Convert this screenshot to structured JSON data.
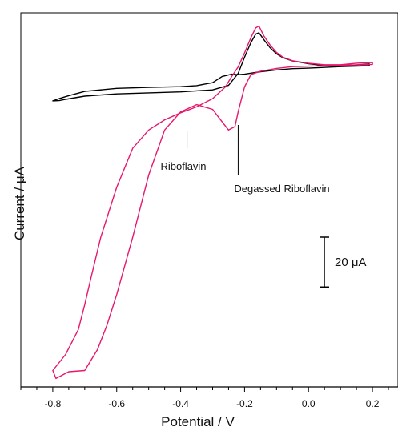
{
  "chart_data": {
    "type": "line",
    "title": "",
    "xlabel": "Potential / V",
    "ylabel": "Current / μA",
    "xlim": [
      -0.9,
      0.28
    ],
    "ylim": [
      -125,
      25
    ],
    "x_ticks": [
      -0.8,
      -0.6,
      -0.4,
      -0.2,
      0.0,
      0.2
    ],
    "x_tick_labels": [
      "-0.8",
      "-0.6",
      "-0.4",
      "-0.2",
      "0.0",
      "0.2"
    ],
    "grid": false,
    "legend": "none",
    "scale_bar": {
      "label": "20 μA",
      "value": 20
    },
    "annotations": [
      {
        "text": "Riboflavin",
        "x": -0.38
      },
      {
        "text": "Degassed Riboflavin",
        "x": -0.22
      }
    ],
    "colors": {
      "pink": "#e8176e",
      "black": "#000000"
    },
    "series": [
      {
        "color": "#000000",
        "x": [
          0.19,
          0.15,
          0.1,
          0.05,
          0.0,
          -0.05,
          -0.08,
          -0.1,
          -0.12,
          -0.14,
          -0.155,
          -0.165,
          -0.18,
          -0.2,
          -0.22,
          -0.25,
          -0.3,
          -0.4,
          -0.5,
          -0.6,
          -0.7,
          -0.76,
          -0.78,
          -0.8,
          -0.78,
          -0.75,
          -0.7,
          -0.6,
          -0.5,
          -0.4,
          -0.35,
          -0.3,
          -0.27,
          -0.24,
          -0.22,
          -0.2,
          -0.18,
          -0.15,
          -0.1,
          -0.05,
          0.0,
          0.1,
          0.19
        ],
        "y": [
          4.5,
          4.1,
          3.7,
          3.9,
          4.6,
          5.7,
          7.0,
          8.6,
          11.0,
          14.3,
          17.0,
          16.5,
          13.1,
          7.2,
          0.7,
          -4.1,
          -5.9,
          -6.7,
          -7.1,
          -7.5,
          -8.4,
          -9.7,
          -10.2,
          -10.3,
          -9.4,
          -8.2,
          -6.5,
          -5.3,
          -4.9,
          -4.6,
          -4.2,
          -3.0,
          -0.5,
          0.4,
          0.2,
          0.4,
          0.8,
          1.4,
          2.1,
          2.6,
          2.8,
          3.4,
          3.8
        ]
      },
      {
        "color": "#e8176e",
        "x": [
          0.2,
          0.15,
          0.1,
          0.05,
          0.0,
          -0.05,
          -0.08,
          -0.1,
          -0.12,
          -0.14,
          -0.155,
          -0.165,
          -0.18,
          -0.2,
          -0.22,
          -0.24,
          -0.26,
          -0.3,
          -0.35,
          -0.4,
          -0.45,
          -0.5,
          -0.55,
          -0.6,
          -0.65,
          -0.68,
          -0.7,
          -0.72,
          -0.76,
          -0.8,
          -0.79,
          -0.75,
          -0.7,
          -0.66,
          -0.63,
          -0.6,
          -0.55,
          -0.5,
          -0.45,
          -0.4,
          -0.35,
          -0.3,
          -0.28,
          -0.25,
          -0.23,
          -0.22,
          -0.2,
          -0.18,
          -0.15,
          -0.1,
          -0.05,
          0.0,
          0.1,
          0.2
        ],
        "y": [
          5.1,
          4.8,
          4.2,
          4.2,
          4.8,
          5.8,
          7.2,
          9.1,
          12.1,
          15.8,
          19.7,
          19.0,
          15.1,
          8.9,
          3.3,
          -0.5,
          -4.7,
          -9.4,
          -12.7,
          -15.1,
          -17.9,
          -22.0,
          -29.3,
          -45.0,
          -65.0,
          -81.0,
          -92.0,
          -102.0,
          -112.0,
          -118.4,
          -121.6,
          -118.9,
          -118.4,
          -110.0,
          -100.0,
          -88.0,
          -65.0,
          -40.0,
          -22.0,
          -14.7,
          -11.8,
          -13.7,
          -17.1,
          -22.0,
          -20.6,
          -14.7,
          -4.7,
          0.3,
          1.6,
          2.7,
          3.4,
          3.6,
          4.0,
          4.3
        ]
      }
    ]
  }
}
